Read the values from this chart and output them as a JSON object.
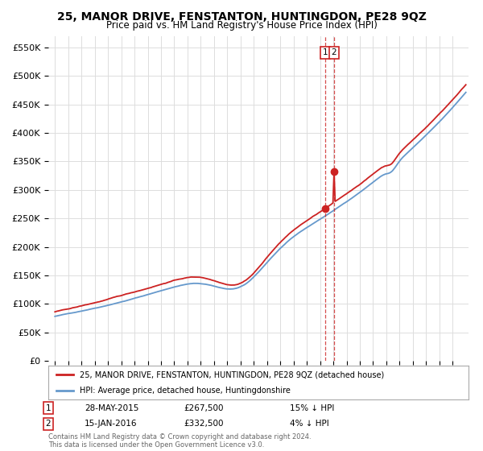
{
  "title": "25, MANOR DRIVE, FENSTANTON, HUNTINGDON, PE28 9QZ",
  "subtitle": "Price paid vs. HM Land Registry's House Price Index (HPI)",
  "ylim": [
    0,
    570000
  ],
  "yticks": [
    0,
    50000,
    100000,
    150000,
    200000,
    250000,
    300000,
    350000,
    400000,
    450000,
    500000,
    550000
  ],
  "ytick_labels": [
    "£0",
    "£50K",
    "£100K",
    "£150K",
    "£200K",
    "£250K",
    "£300K",
    "£350K",
    "£400K",
    "£450K",
    "£500K",
    "£550K"
  ],
  "hpi_color": "#6699cc",
  "price_color": "#cc2222",
  "sale1_year": 2015.38,
  "sale1_price": 267500,
  "sale2_year": 2016.04,
  "sale2_price": 332500,
  "sale1_label": "28-MAY-2015",
  "sale1_price_str": "£267,500",
  "sale1_hpi_str": "15% ↓ HPI",
  "sale2_label": "15-JAN-2016",
  "sale2_price_str": "£332,500",
  "sale2_hpi_str": "4% ↓ HPI",
  "legend_line1": "25, MANOR DRIVE, FENSTANTON, HUNTINGDON, PE28 9QZ (detached house)",
  "legend_line2": "HPI: Average price, detached house, Huntingdonshire",
  "footer": "Contains HM Land Registry data © Crown copyright and database right 2024.\nThis data is licensed under the Open Government Licence v3.0.",
  "background_color": "#ffffff",
  "grid_color": "#dddddd",
  "xlim_left": 1994.5,
  "xlim_right": 2026.2
}
